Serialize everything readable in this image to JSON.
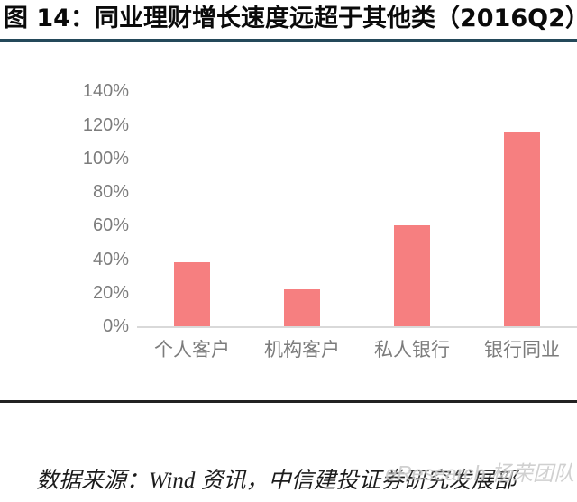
{
  "header": {
    "title": "图 14：同业理财增长速度远超于其他类（2016Q2）"
  },
  "chart_data": {
    "type": "bar",
    "title": "同业理财增长速度远超于其他类（2016Q2）",
    "categories": [
      "个人客户",
      "机构客户",
      "私人银行",
      "银行同业"
    ],
    "values": [
      38,
      22,
      60,
      116
    ],
    "unit": "%",
    "xlabel": "",
    "ylabel": "",
    "y_tick_labels": [
      "0%",
      "20%",
      "40%",
      "60%",
      "80%",
      "100%",
      "120%",
      "140%"
    ],
    "y_tick_values": [
      0,
      20,
      40,
      60,
      80,
      100,
      120,
      140
    ],
    "ylim": [
      0,
      145
    ],
    "grid": false,
    "legend": false,
    "bar_color": "#F67F80",
    "tick_label_color": "#7C7C7C",
    "axis_line_color": "#D9D9D9"
  },
  "footer": {
    "source": "数据来源：Wind 资讯，中信建投证券研究发展部",
    "watermark": "eResearch 杨荣团队"
  },
  "colors": {
    "title_text": "#0A0A0A",
    "title_rule": "#24495A",
    "footer_rule": "#222222",
    "background": "#FFFFFF"
  }
}
